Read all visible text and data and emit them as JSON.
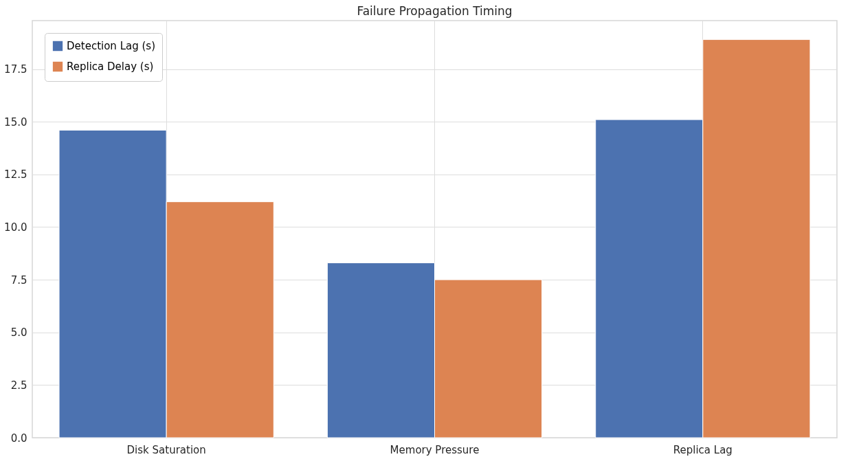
{
  "chart_data": {
    "type": "bar",
    "title": "Failure Propagation Timing",
    "categories": [
      "Disk Saturation",
      "Memory Pressure",
      "Replica Lag"
    ],
    "series": [
      {
        "name": "Detection Lag (s)",
        "color": "#4c72b0",
        "values": [
          14.6,
          8.3,
          15.1
        ]
      },
      {
        "name": "Replica Delay (s)",
        "color": "#dd8452",
        "values": [
          11.2,
          7.5,
          18.9
        ]
      }
    ],
    "ylim": [
      0,
      19.8
    ],
    "yticks": [
      {
        "value": 0,
        "label": "0.0"
      },
      {
        "value": 2.5,
        "label": "2.5"
      },
      {
        "value": 5,
        "label": "5.0"
      },
      {
        "value": 7.5,
        "label": "7.5"
      },
      {
        "value": 10,
        "label": "10.0"
      },
      {
        "value": 12.5,
        "label": "12.5"
      },
      {
        "value": 15,
        "label": "15.0"
      },
      {
        "value": 17.5,
        "label": "17.5"
      }
    ],
    "grid": true,
    "legend": "top left"
  }
}
